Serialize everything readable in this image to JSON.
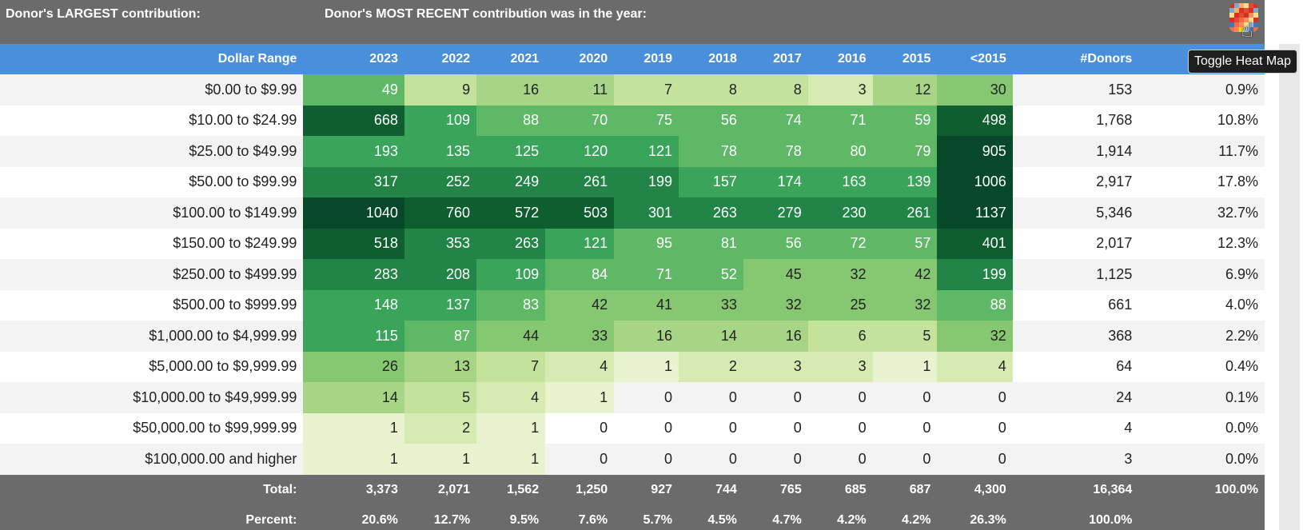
{
  "header": {
    "largest_label": "Donor's LARGEST contribution:",
    "recent_label": "Donor's MOST RECENT contribution was in the year:",
    "toggle_icon": "heatmap-icon",
    "tooltip": "Toggle Heat Map"
  },
  "table": {
    "columns": [
      "Dollar Range",
      "2023",
      "2022",
      "2021",
      "2020",
      "2019",
      "2018",
      "2017",
      "2016",
      "2015",
      "<2015",
      "#Donors",
      ""
    ],
    "rows": [
      {
        "range": "$0.00 to $9.99",
        "values": [
          "49",
          "9",
          "16",
          "11",
          "7",
          "8",
          "8",
          "3",
          "12",
          "30"
        ],
        "donors": "153",
        "pct": "0.9%"
      },
      {
        "range": "$10.00 to $24.99",
        "values": [
          "668",
          "109",
          "88",
          "70",
          "75",
          "56",
          "74",
          "71",
          "59",
          "498"
        ],
        "donors": "1,768",
        "pct": "10.8%"
      },
      {
        "range": "$25.00 to $49.99",
        "values": [
          "193",
          "135",
          "125",
          "120",
          "121",
          "78",
          "78",
          "80",
          "79",
          "905"
        ],
        "donors": "1,914",
        "pct": "11.7%"
      },
      {
        "range": "$50.00 to $99.99",
        "values": [
          "317",
          "252",
          "249",
          "261",
          "199",
          "157",
          "174",
          "163",
          "139",
          "1006"
        ],
        "donors": "2,917",
        "pct": "17.8%"
      },
      {
        "range": "$100.00 to $149.99",
        "values": [
          "1040",
          "760",
          "572",
          "503",
          "301",
          "263",
          "279",
          "230",
          "261",
          "1137"
        ],
        "donors": "5,346",
        "pct": "32.7%"
      },
      {
        "range": "$150.00 to $249.99",
        "values": [
          "518",
          "353",
          "263",
          "121",
          "95",
          "81",
          "56",
          "72",
          "57",
          "401"
        ],
        "donors": "2,017",
        "pct": "12.3%"
      },
      {
        "range": "$250.00 to $499.99",
        "values": [
          "283",
          "208",
          "109",
          "84",
          "71",
          "52",
          "45",
          "32",
          "42",
          "199"
        ],
        "donors": "1,125",
        "pct": "6.9%"
      },
      {
        "range": "$500.00 to $999.99",
        "values": [
          "148",
          "137",
          "83",
          "42",
          "41",
          "33",
          "32",
          "25",
          "32",
          "88"
        ],
        "donors": "661",
        "pct": "4.0%"
      },
      {
        "range": "$1,000.00 to $4,999.99",
        "values": [
          "115",
          "87",
          "44",
          "33",
          "16",
          "14",
          "16",
          "6",
          "5",
          "32"
        ],
        "donors": "368",
        "pct": "2.2%"
      },
      {
        "range": "$5,000.00 to $9,999.99",
        "values": [
          "26",
          "13",
          "7",
          "4",
          "1",
          "2",
          "3",
          "3",
          "1",
          "4"
        ],
        "donors": "64",
        "pct": "0.4%"
      },
      {
        "range": "$10,000.00 to $49,999.99",
        "values": [
          "14",
          "5",
          "4",
          "1",
          "0",
          "0",
          "0",
          "0",
          "0",
          "0"
        ],
        "donors": "24",
        "pct": "0.1%"
      },
      {
        "range": "$50,000.00 to $99,999.99",
        "values": [
          "1",
          "2",
          "1",
          "0",
          "0",
          "0",
          "0",
          "0",
          "0",
          "0"
        ],
        "donors": "4",
        "pct": "0.0%"
      },
      {
        "range": "$100,000.00 and higher",
        "values": [
          "1",
          "1",
          "1",
          "0",
          "0",
          "0",
          "0",
          "0",
          "0",
          "0"
        ],
        "donors": "3",
        "pct": "0.0%"
      }
    ],
    "total": {
      "label": "Total:",
      "values": [
        "3,373",
        "2,071",
        "1,562",
        "1,250",
        "927",
        "744",
        "765",
        "685",
        "687",
        "4,300"
      ],
      "donors": "16,364",
      "pct": "100.0%"
    },
    "percent": {
      "label": "Percent:",
      "values": [
        "20.6%",
        "12.7%",
        "9.5%",
        "7.6%",
        "5.7%",
        "4.5%",
        "4.7%",
        "4.2%",
        "4.2%",
        "26.3%"
      ],
      "donors": "100.0%",
      "pct": ""
    }
  },
  "heatmap": {
    "scale_max": 1137,
    "colors": [
      "#f4f9e4",
      "#e9f3cf",
      "#d7eab2",
      "#c4e29c",
      "#a8d585",
      "#86c772",
      "#5fb866",
      "#3aa55a",
      "#238447",
      "#0e5e30",
      "#07472a"
    ],
    "empty_color": "#ffffff",
    "light_text": "#ffffff",
    "dark_text": "#222222"
  }
}
